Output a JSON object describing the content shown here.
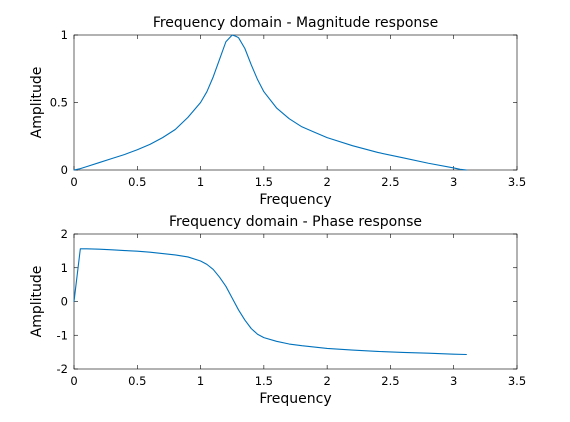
{
  "chart_data": [
    {
      "type": "line",
      "title": "Frequency domain - Magnitude response",
      "xlabel": "Frequency",
      "ylabel": "Amplitude",
      "xlim": [
        0,
        3.5
      ],
      "ylim": [
        0,
        1
      ],
      "xticks": [
        0,
        0.5,
        1,
        1.5,
        2,
        2.5,
        3,
        3.5
      ],
      "xtick_labels": [
        "0",
        "0.5",
        "1",
        "1.5",
        "2",
        "2.5",
        "3",
        "3.5"
      ],
      "yticks": [
        0,
        0.5,
        1
      ],
      "ytick_labels": [
        "0",
        "0.5",
        "1"
      ],
      "grid": false,
      "color": "#0072BD",
      "series": [
        {
          "x": [
            0,
            0.05,
            0.1,
            0.2,
            0.3,
            0.4,
            0.5,
            0.6,
            0.7,
            0.8,
            0.9,
            1.0,
            1.05,
            1.1,
            1.15,
            1.2,
            1.25,
            1.28,
            1.3,
            1.35,
            1.4,
            1.45,
            1.5,
            1.6,
            1.7,
            1.8,
            1.9,
            2.0,
            2.2,
            2.4,
            2.6,
            2.8,
            3.0,
            3.05,
            3.1
          ],
          "y": [
            0,
            0.01,
            0.025,
            0.055,
            0.085,
            0.115,
            0.15,
            0.19,
            0.24,
            0.3,
            0.39,
            0.5,
            0.58,
            0.69,
            0.82,
            0.95,
            1.0,
            0.99,
            0.98,
            0.9,
            0.78,
            0.67,
            0.58,
            0.46,
            0.38,
            0.32,
            0.28,
            0.24,
            0.18,
            0.13,
            0.09,
            0.05,
            0.015,
            0.005,
            0
          ]
        }
      ]
    },
    {
      "type": "line",
      "title": "Frequency domain - Phase response",
      "xlabel": "Frequency",
      "ylabel": "Amplitude",
      "xlim": [
        0,
        3.5
      ],
      "ylim": [
        -2,
        2
      ],
      "xticks": [
        0,
        0.5,
        1,
        1.5,
        2,
        2.5,
        3,
        3.5
      ],
      "xtick_labels": [
        "0",
        "0.5",
        "1",
        "1.5",
        "2",
        "2.5",
        "3",
        "3.5"
      ],
      "yticks": [
        -2,
        -1,
        0,
        1,
        2
      ],
      "ytick_labels": [
        "-2",
        "-1",
        "0",
        "1",
        "2"
      ],
      "grid": false,
      "color": "#0072BD",
      "series": [
        {
          "x": [
            0,
            0.05,
            0.1,
            0.2,
            0.3,
            0.4,
            0.5,
            0.6,
            0.7,
            0.8,
            0.9,
            1.0,
            1.05,
            1.1,
            1.15,
            1.2,
            1.25,
            1.3,
            1.35,
            1.4,
            1.45,
            1.5,
            1.6,
            1.7,
            1.8,
            1.9,
            2.0,
            2.2,
            2.4,
            2.6,
            2.8,
            3.0,
            3.1
          ],
          "y": [
            0,
            1.56,
            1.56,
            1.55,
            1.53,
            1.51,
            1.49,
            1.46,
            1.42,
            1.38,
            1.32,
            1.2,
            1.1,
            0.95,
            0.72,
            0.45,
            0.1,
            -0.25,
            -0.55,
            -0.8,
            -0.97,
            -1.07,
            -1.18,
            -1.26,
            -1.31,
            -1.35,
            -1.39,
            -1.44,
            -1.48,
            -1.51,
            -1.53,
            -1.56,
            -1.57
          ]
        }
      ]
    }
  ]
}
